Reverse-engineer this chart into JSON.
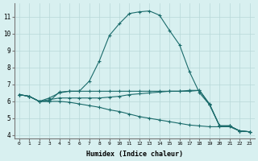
{
  "title": "",
  "xlabel": "Humidex (Indice chaleur)",
  "background_color": "#d8f0f0",
  "grid_color": "#b8d8d8",
  "line_color": "#1a6b6b",
  "xlim": [
    -0.5,
    23.5
  ],
  "ylim": [
    3.8,
    11.8
  ],
  "yticks": [
    4,
    5,
    6,
    7,
    8,
    9,
    10,
    11
  ],
  "xticks": [
    0,
    1,
    2,
    3,
    4,
    5,
    6,
    7,
    8,
    9,
    10,
    11,
    12,
    13,
    14,
    15,
    16,
    17,
    18,
    19,
    20,
    21,
    22,
    23
  ],
  "curves": [
    {
      "x": [
        0,
        1,
        2,
        3,
        4,
        5,
        6,
        7,
        8,
        9,
        10,
        11,
        12,
        13,
        14,
        15,
        16,
        17,
        18,
        19,
        20,
        21,
        22,
        23
      ],
      "y": [
        6.4,
        6.3,
        6.0,
        6.2,
        6.5,
        6.6,
        6.6,
        7.2,
        8.4,
        9.9,
        10.6,
        11.2,
        11.3,
        11.35,
        11.1,
        10.2,
        9.35,
        7.75,
        6.5,
        5.8,
        4.55,
        4.55,
        4.25,
        4.2
      ]
    },
    {
      "x": [
        0,
        1,
        2,
        3,
        4,
        5,
        6,
        7,
        8,
        9,
        10,
        11,
        12,
        13,
        14,
        15,
        16,
        17,
        18,
        19,
        20,
        21,
        22,
        23
      ],
      "y": [
        6.4,
        6.3,
        6.0,
        6.1,
        6.2,
        6.2,
        6.2,
        6.2,
        6.2,
        6.25,
        6.3,
        6.4,
        6.45,
        6.5,
        6.55,
        6.6,
        6.6,
        6.65,
        6.65,
        5.85,
        4.55,
        4.55,
        4.25,
        4.2
      ]
    },
    {
      "x": [
        0,
        1,
        2,
        3,
        4,
        5,
        6,
        7,
        8,
        9,
        10,
        11,
        12,
        13,
        14,
        15,
        16,
        17,
        18,
        19,
        20,
        21,
        22,
        23
      ],
      "y": [
        6.4,
        6.3,
        6.0,
        6.0,
        6.0,
        5.95,
        5.85,
        5.75,
        5.65,
        5.5,
        5.4,
        5.25,
        5.1,
        5.0,
        4.9,
        4.8,
        4.7,
        4.6,
        4.55,
        4.5,
        4.5,
        4.5,
        4.25,
        4.2
      ]
    },
    {
      "x": [
        0,
        1,
        2,
        3,
        4,
        5,
        6,
        7,
        8,
        9,
        10,
        11,
        12,
        13,
        14,
        15,
        16,
        17,
        18,
        19,
        20,
        21,
        22,
        23
      ],
      "y": [
        6.4,
        6.3,
        6.0,
        6.0,
        6.55,
        6.6,
        6.6,
        6.6,
        6.6,
        6.6,
        6.6,
        6.6,
        6.6,
        6.6,
        6.6,
        6.6,
        6.6,
        6.6,
        6.65,
        5.8,
        4.55,
        4.55,
        4.25,
        4.2
      ]
    }
  ]
}
